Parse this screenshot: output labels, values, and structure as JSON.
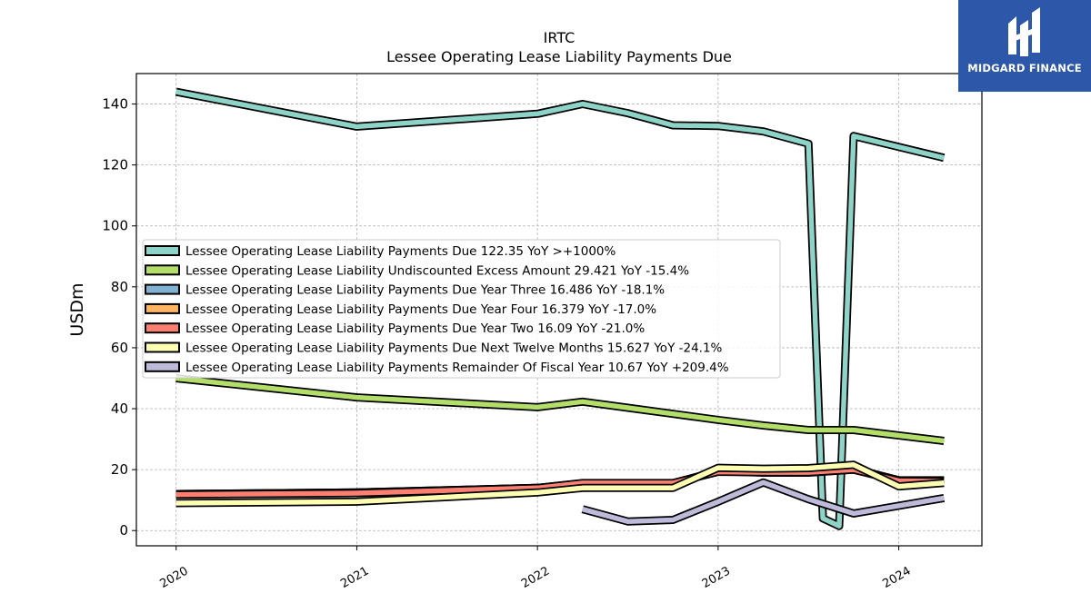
{
  "chart_data": {
    "type": "line",
    "title": "IRTC",
    "subtitle": "Lessee Operating Lease Liability Payments Due",
    "ylabel": "USDm",
    "xlabel": "",
    "ylim": [
      -5,
      150
    ],
    "xlim": [
      2019.78,
      2024.46
    ],
    "yticks": [
      0,
      20,
      40,
      60,
      80,
      100,
      120,
      140
    ],
    "xticks": [
      2020,
      2021,
      2022,
      2023,
      2024
    ],
    "xtick_labels": [
      "2020",
      "2021",
      "2022",
      "2023",
      "2024"
    ],
    "grid": true,
    "legend_position": "center-left",
    "series": [
      {
        "name": "Lessee Operating Lease Liability Payments Due",
        "legend": "Lessee Operating Lease Liability Payments Due  122.35 YoY >+1000%",
        "color": "#8dd3c7",
        "x": [
          2020.0,
          2021.0,
          2022.0,
          2022.25,
          2022.5,
          2022.75,
          2023.0,
          2023.25,
          2023.5,
          2023.58,
          2023.67,
          2023.75,
          2024.25
        ],
        "y": [
          144,
          132.6,
          136.8,
          140,
          137,
          133,
          132.8,
          131,
          127,
          4,
          1.5,
          129.5,
          122.35
        ]
      },
      {
        "name": "Lessee Operating Lease Liability Undiscounted Excess Amount",
        "legend": "Lessee Operating Lease Liability Undiscounted Excess Amount  29.421 YoY -15.4%",
        "color": "#b3de69",
        "x": [
          2020.0,
          2021.0,
          2022.0,
          2022.25,
          2022.5,
          2022.75,
          2023.0,
          2023.25,
          2023.5,
          2023.75,
          2024.25
        ],
        "y": [
          50,
          43.7,
          40.5,
          42.3,
          40.3,
          38.3,
          36.3,
          34.5,
          33,
          33,
          29.421
        ]
      },
      {
        "name": "Lessee Operating Lease Liability Payments Due Year Three",
        "legend": "Lessee Operating Lease Liability Payments Due Year Three  16.486 YoY -18.1%",
        "color": "#80b1d3",
        "x": [
          2020.0,
          2021.0,
          2022.0,
          2022.25,
          2022.5,
          2022.75,
          2023.0,
          2023.25,
          2023.5,
          2023.75,
          2024.0,
          2024.25
        ],
        "y": [
          12,
          12.5,
          14,
          15.5,
          15.5,
          15.5,
          19.5,
          19,
          19,
          20,
          16.5,
          16.486
        ]
      },
      {
        "name": "Lessee Operating Lease Liability Payments Due Year Four",
        "legend": "Lessee Operating Lease Liability Payments Due Year Four  16.379 YoY -17.0%",
        "color": "#fdb462",
        "x": [
          2020.0,
          2021.0,
          2022.0,
          2022.25,
          2022.5,
          2022.75,
          2023.0,
          2023.25,
          2023.5,
          2023.75,
          2024.0,
          2024.25
        ],
        "y": [
          12,
          12.5,
          14,
          15.5,
          15.5,
          15.5,
          19.5,
          19.5,
          19.5,
          20.3,
          16.5,
          16.379
        ]
      },
      {
        "name": "Lessee Operating Lease Liability Payments Due Year Two",
        "legend": "Lessee Operating Lease Liability Payments Due Year Two  16.09 YoY -21.0%",
        "color": "#fb8072",
        "x": [
          2020.0,
          2021.0,
          2022.0,
          2022.25,
          2022.5,
          2022.75,
          2023.0,
          2023.25,
          2023.5,
          2023.75,
          2024.0,
          2024.25
        ],
        "y": [
          11.8,
          12.3,
          14,
          15.6,
          15.6,
          15.6,
          19.3,
          19.1,
          19.1,
          20,
          16.3,
          16.09
        ]
      },
      {
        "name": "Lessee Operating Lease Liability Payments Due Next Twelve Months",
        "legend": "Lessee Operating Lease Liability Payments Due Next Twelve Months  15.627 YoY -24.1%",
        "color": "#ffffb3",
        "x": [
          2020.0,
          2021.0,
          2022.0,
          2022.25,
          2022.5,
          2022.75,
          2023.0,
          2023.25,
          2023.5,
          2023.75,
          2024.0,
          2024.25
        ],
        "y": [
          9,
          9.5,
          12.5,
          14,
          14,
          14,
          20.6,
          20.3,
          20.5,
          21.6,
          14.5,
          15.627
        ]
      },
      {
        "name": "Lessee Operating Lease Liability Payments Remainder Of Fiscal Year",
        "legend": "Lessee Operating Lease Liability Payments Remainder Of Fiscal Year  10.67 YoY +209.4%",
        "color": "#bebada",
        "x": [
          2022.25,
          2022.5,
          2022.75,
          2023.0,
          2023.25,
          2023.5,
          2023.75,
          2024.25
        ],
        "y": [
          7,
          3,
          3.5,
          9.5,
          15.8,
          10.3,
          5.6,
          10.67
        ]
      }
    ]
  },
  "logo": {
    "text": "MIDGARD FINANCE",
    "bg_color": "#2d57a8"
  }
}
